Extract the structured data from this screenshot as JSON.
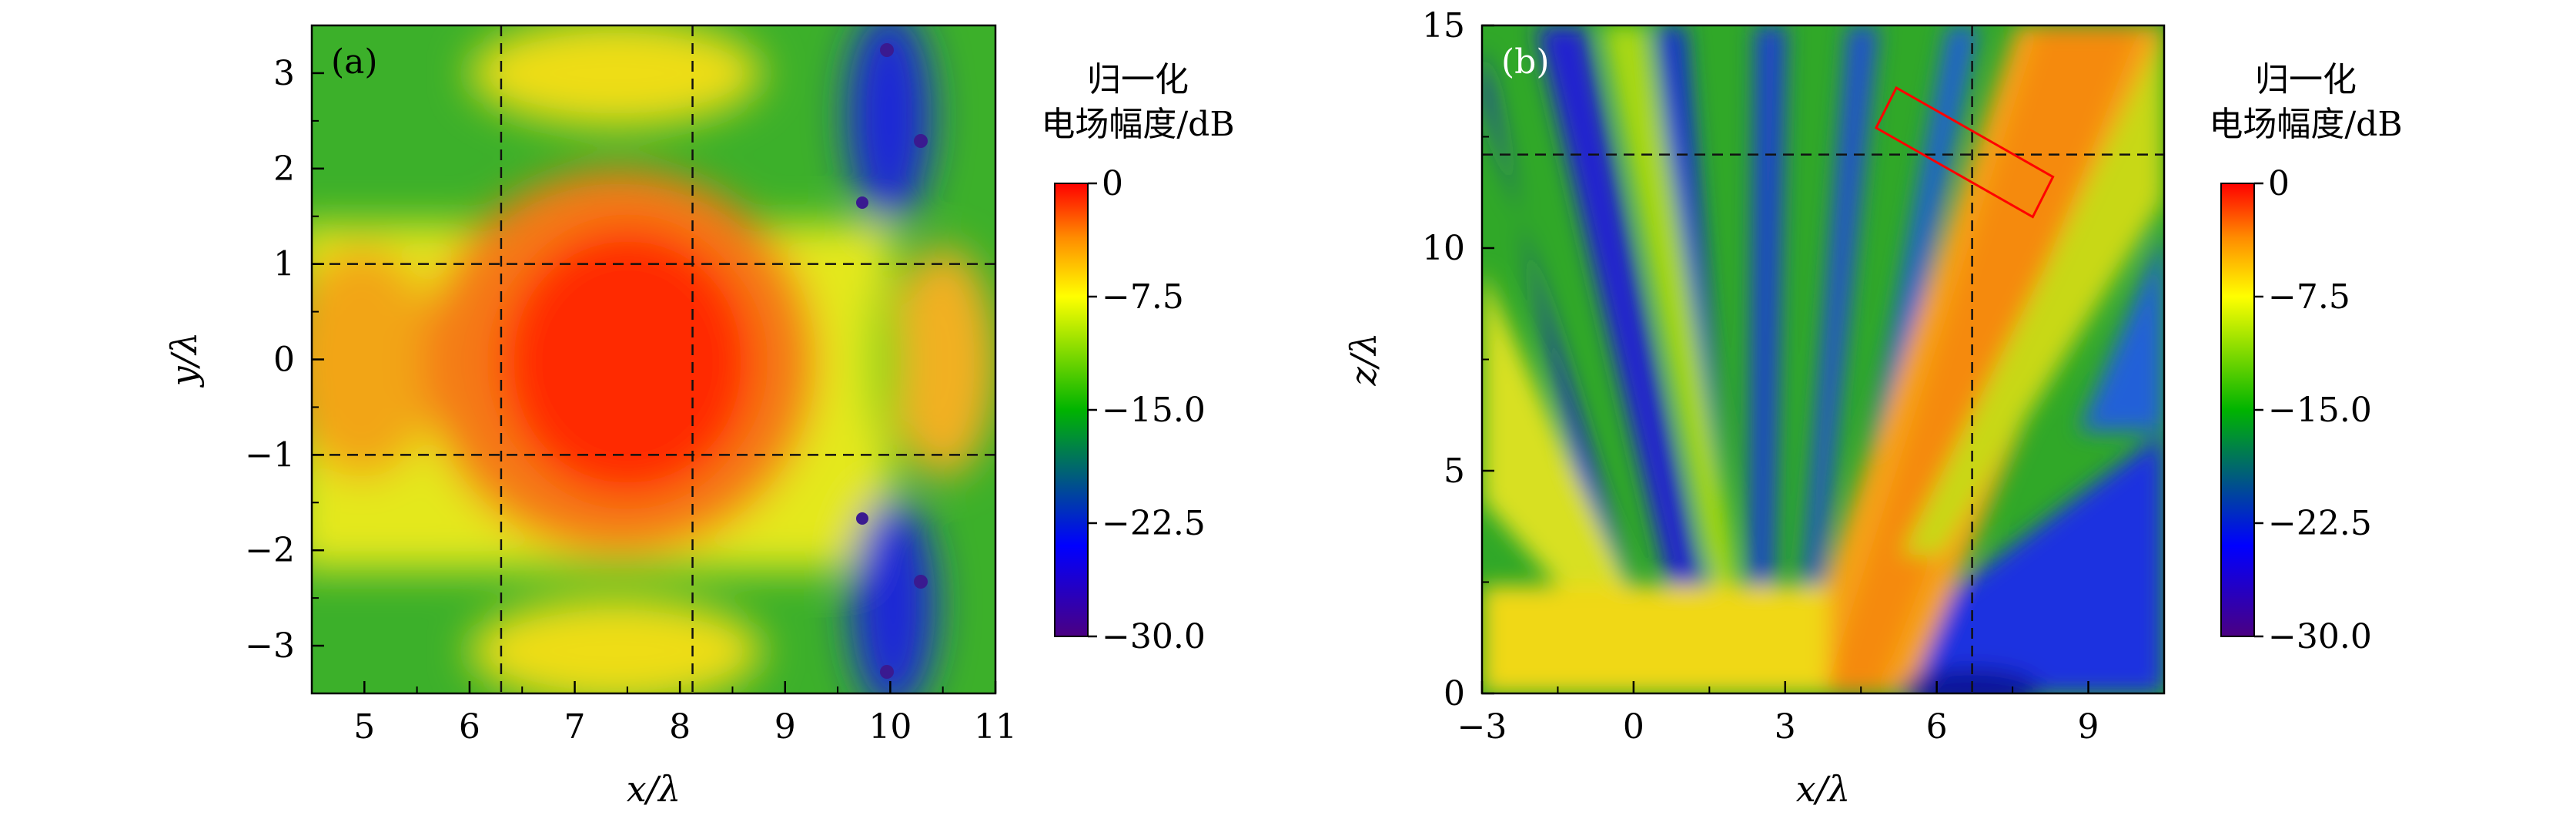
{
  "chart_data": [
    {
      "type": "heatmap",
      "panel_label": "(a)",
      "xlabel": "x/λ",
      "ylabel": "y/λ",
      "xlim": [
        4.5,
        11
      ],
      "ylim": [
        -3.5,
        3.5
      ],
      "xticks": [
        5,
        6,
        7,
        8,
        9,
        10,
        11
      ],
      "xtick_labels": [
        "5",
        "6",
        "7",
        "8",
        "9",
        "10",
        "11"
      ],
      "yticks": [
        -3,
        -2,
        -1,
        0,
        1,
        2,
        3
      ],
      "ytick_labels": [
        "−3",
        "−2",
        "−1",
        "0",
        "1",
        "2",
        "3"
      ],
      "dashed_lines": {
        "x": [
          6.3,
          8.12
        ],
        "y": [
          1,
          -1
        ]
      },
      "colorbar": {
        "title_line1": "归一化",
        "title_line2": "电场幅度/dB",
        "range": [
          -30,
          0
        ],
        "ticks": [
          0,
          -7.5,
          -15,
          -22.5,
          -30
        ],
        "tick_labels": [
          "0",
          "−7.5",
          "−15.0",
          "−22.5",
          "−30.0"
        ],
        "colormap": [
          "#ff0000",
          "#ff8c00",
          "#ffff00",
          "#00b400",
          "#0000ff",
          "#4b0082"
        ]
      },
      "grid": false
    },
    {
      "type": "heatmap",
      "panel_label": "(b)",
      "xlabel": "x/λ",
      "ylabel": "z/λ",
      "xlim": [
        -3,
        10.5
      ],
      "ylim": [
        0,
        15
      ],
      "xticks": [
        -3,
        0,
        3,
        6,
        9
      ],
      "xtick_labels": [
        "−3",
        "0",
        "3",
        "6",
        "9"
      ],
      "yticks": [
        0,
        5,
        10,
        15
      ],
      "ytick_labels": [
        "0",
        "5",
        "10",
        "15"
      ],
      "dashed_lines": {
        "x": [
          6.7
        ],
        "y": [
          12.1
        ]
      },
      "highlight_box": {
        "corners": [
          [
            5.2,
            13.6
          ],
          [
            8.3,
            11.6
          ],
          [
            7.9,
            10.7
          ],
          [
            4.8,
            12.7
          ]
        ],
        "color": "#ff0000"
      },
      "colorbar": {
        "title_line1": "归一化",
        "title_line2": "电场幅度/dB",
        "range": [
          -30,
          0
        ],
        "ticks": [
          0,
          -7.5,
          -15,
          -22.5,
          -30
        ],
        "tick_labels": [
          "0",
          "−7.5",
          "−15.0",
          "−22.5",
          "−30.0"
        ],
        "colormap": [
          "#ff0000",
          "#ff8c00",
          "#ffff00",
          "#00b400",
          "#0000ff",
          "#4b0082"
        ]
      },
      "grid": false
    }
  ]
}
